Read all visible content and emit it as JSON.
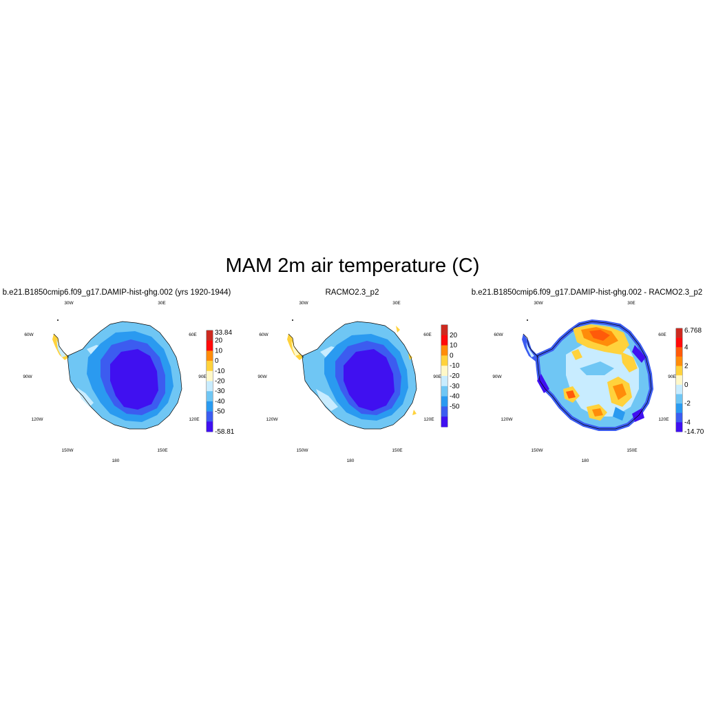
{
  "title": "MAM 2m air temperature (C)",
  "panels": [
    {
      "title": "b.e21.B1850cmip6.f09_g17.DAMIP-hist-ghg.002 (yrs 1920-1944)",
      "colorbar": {
        "labels": [
          "33.84",
          "20",
          "10",
          "0",
          "-10",
          "-20",
          "-30",
          "-40",
          "-50",
          "-58.81"
        ],
        "colors": [
          "#cc2a20",
          "#ff0a0a",
          "#ff8c0a",
          "#ffd23c",
          "#fff8c8",
          "#c8ecff",
          "#6fc6f4",
          "#2a9af0",
          "#3c5cf0",
          "#4010f0"
        ]
      }
    },
    {
      "title": "RACMO2.3_p2",
      "colorbar": {
        "labels": [
          "20",
          "10",
          "0",
          "-10",
          "-20",
          "-30",
          "-40",
          "-50"
        ],
        "colors": [
          "#cc2a20",
          "#ff0a0a",
          "#ff8c0a",
          "#ffd23c",
          "#fff8c8",
          "#c8ecff",
          "#6fc6f4",
          "#2a9af0",
          "#3c5cf0",
          "#4010f0"
        ]
      }
    },
    {
      "title": "b.e21.B1850cmip6.f09_g17.DAMIP-hist-ghg.002 - RACMO2.3_p2",
      "colorbar": {
        "labels": [
          "6.768",
          "4",
          "2",
          "0",
          "-2",
          "-4",
          "-14.706"
        ],
        "colors": [
          "#cc2a20",
          "#ff0a0a",
          "#ff5a0a",
          "#ff8c0a",
          "#ffd23c",
          "#fff8c8",
          "#c8ecff",
          "#6fc6f4",
          "#2a9af0",
          "#3c5cf0",
          "#4010f0"
        ]
      }
    }
  ],
  "lon_labels": [
    "30W",
    "30E",
    "60W",
    "60E",
    "90W",
    "90E",
    "120W",
    "120E",
    "150W",
    "150E",
    "180"
  ]
}
